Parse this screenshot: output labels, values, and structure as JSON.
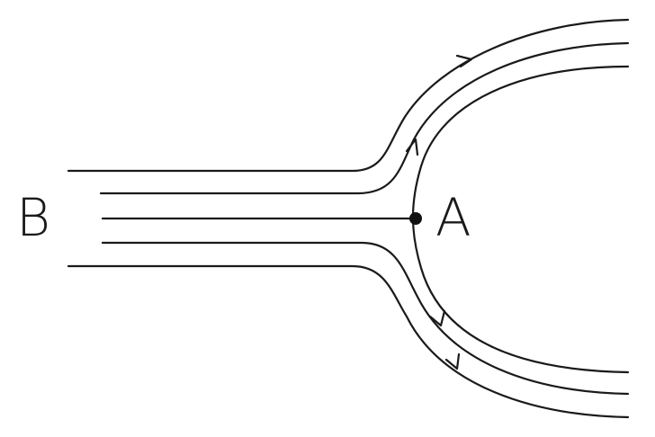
{
  "labels": {
    "left": "B",
    "stagnation_point": "A"
  },
  "colors": {
    "line": "#1a1a1a",
    "background": "#ffffff"
  }
}
